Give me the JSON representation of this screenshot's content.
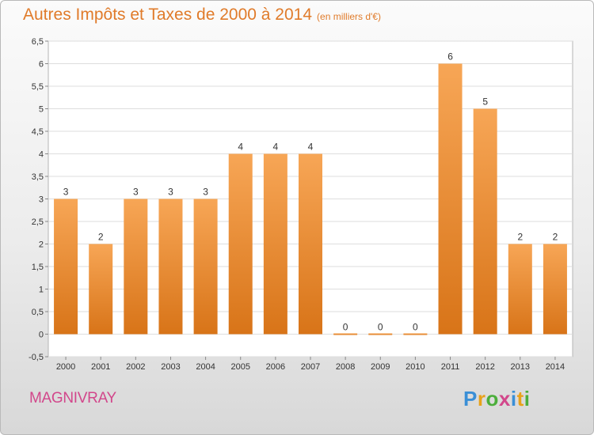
{
  "title": "Autres Impôts et Taxes de 2000 à 2014",
  "subtitle": "(en milliers d'€)",
  "footer_name": "MAGNIVRAY",
  "logo": {
    "text": "Proxiti",
    "letters": [
      {
        "ch": "P",
        "color": "#3a8fd6"
      },
      {
        "ch": "r",
        "color": "#e8a21a"
      },
      {
        "ch": "o",
        "color": "#4cae3b"
      },
      {
        "ch": "x",
        "color": "#d2478b"
      },
      {
        "ch": "i",
        "color": "#3a8fd6"
      },
      {
        "ch": "t",
        "color": "#e8a21a"
      },
      {
        "ch": "i",
        "color": "#4cae3b"
      }
    ]
  },
  "colors": {
    "bar_top": "#f7a656",
    "bar_bottom": "#d87418",
    "title": "#e07b2a",
    "footer": "#d2478b"
  },
  "chart_data": {
    "type": "bar",
    "categories": [
      "2000",
      "2001",
      "2002",
      "2003",
      "2004",
      "2005",
      "2006",
      "2007",
      "2008",
      "2009",
      "2010",
      "2011",
      "2012",
      "2013",
      "2014"
    ],
    "values": [
      3,
      2,
      3,
      3,
      3,
      4,
      4,
      4,
      0,
      0,
      0,
      6,
      5,
      2,
      2
    ],
    "ylim": [
      -0.5,
      6.5
    ],
    "yticks": [
      "-0,5",
      "0",
      "0,5",
      "1",
      "1,5",
      "2",
      "2,5",
      "3",
      "3,5",
      "4",
      "4,5",
      "5",
      "5,5",
      "6",
      "6,5"
    ],
    "ytick_values": [
      -0.5,
      0,
      0.5,
      1,
      1.5,
      2,
      2.5,
      3,
      3.5,
      4,
      4.5,
      5,
      5.5,
      6,
      6.5
    ],
    "grid": true
  }
}
